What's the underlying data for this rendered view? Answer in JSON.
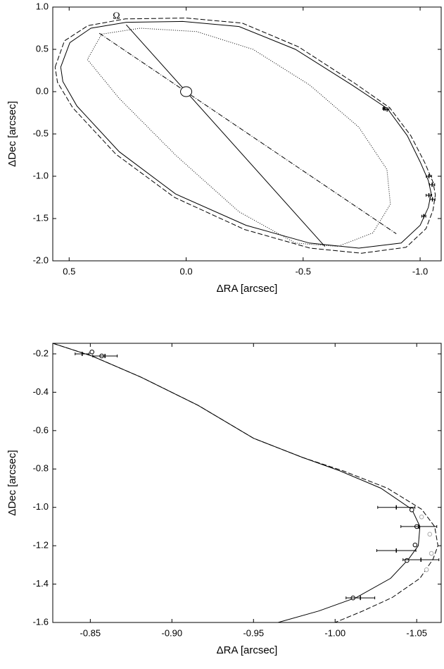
{
  "chart_data": [
    {
      "type": "line",
      "xlabel": "ΔRA [arcsec]",
      "ylabel": "ΔDec [arcsec]",
      "annotation": "Ω",
      "xlim": [
        0.57,
        -1.09
      ],
      "ylim": [
        -2.0,
        1.0
      ],
      "xticks": [
        0.5,
        {
          "value": 0,
          "label": "0.0"
        },
        -0.5,
        {
          "value": -1,
          "label": "-1.0"
        }
      ],
      "yticks": [
        {
          "value": 1,
          "label": "1.0"
        },
        0.5,
        {
          "value": 0,
          "label": "0.0"
        },
        -0.5,
        {
          "value": -1,
          "label": "-1.0"
        },
        -1.5,
        {
          "value": -2,
          "label": "-2.0"
        }
      ],
      "series": [
        {
          "style": "dashed",
          "color": "#000000",
          "x": [
            0.56,
            0.52,
            0.42,
            0.26,
            0.0,
            -0.24,
            -0.48,
            -0.72,
            -0.87,
            -0.96,
            -1.02,
            -1.055,
            -1.065,
            -1.055,
            -1.025,
            -0.94,
            -0.75,
            -0.53,
            -0.25,
            0.05,
            0.3,
            0.485,
            0.55,
            0.56
          ],
          "y": [
            0.29,
            0.6,
            0.78,
            0.86,
            0.87,
            0.81,
            0.53,
            0.1,
            -0.19,
            -0.52,
            -0.84,
            -1.07,
            -1.22,
            -1.4,
            -1.62,
            -1.84,
            -1.91,
            -1.85,
            -1.63,
            -1.25,
            -0.74,
            -0.19,
            0.11,
            0.29
          ]
        },
        {
          "style": "solid",
          "color": "#000000",
          "x": [
            0.536,
            0.497,
            0.407,
            0.256,
            0.015,
            -0.226,
            -0.467,
            -0.708,
            -0.86,
            -0.945,
            -1.0,
            -1.035,
            -1.047,
            -1.035,
            -1.0,
            -0.919,
            -0.738,
            -0.527,
            -0.256,
            0.045,
            0.286,
            0.467,
            0.527,
            0.536
          ],
          "y": [
            0.29,
            0.58,
            0.75,
            0.82,
            0.83,
            0.77,
            0.5,
            0.08,
            -0.2,
            -0.52,
            -0.83,
            -1.05,
            -1.2,
            -1.37,
            -1.58,
            -1.79,
            -1.85,
            -1.79,
            -1.58,
            -1.21,
            -0.71,
            -0.17,
            0.12,
            0.29
          ]
        },
        {
          "style": "dotted",
          "color": "#000000",
          "x": [
            0.361,
            0.196,
            -0.045,
            -0.286,
            -0.527,
            -0.738,
            -0.858,
            -0.873,
            -0.798,
            -0.648,
            -0.467,
            -0.226,
            0.045,
            0.286,
            0.422,
            0.361
          ],
          "y": [
            0.68,
            0.75,
            0.71,
            0.5,
            0.08,
            -0.42,
            -0.92,
            -1.33,
            -1.67,
            -1.83,
            -1.79,
            -1.42,
            -0.75,
            -0.08,
            0.38,
            0.68
          ]
        },
        {
          "style": "solid",
          "color": "#000000",
          "x": [
            0.256,
            -0.593
          ],
          "y": [
            0.79,
            -1.83
          ]
        },
        {
          "style": "dashdot",
          "color": "#000000",
          "x": [
            0.371,
            -0.898
          ],
          "y": [
            0.69,
            -1.68
          ]
        },
        {
          "marker": "ellipse",
          "color": "#000000",
          "x": [
            0
          ],
          "y": [
            0
          ]
        },
        {
          "marker": "bar",
          "color": "#000000",
          "x": [
            -0.845,
            -0.859,
            -1.0375,
            -1.0513,
            -1.0375,
            -1.0526,
            -1.0155
          ],
          "y": [
            -0.2,
            -0.211,
            -1.0,
            -1.1,
            -1.225,
            -1.273,
            -1.472
          ],
          "xerr": [
            0.0043,
            0.0075,
            0.0114,
            0.011,
            0.012,
            0.011,
            0.0088
          ]
        }
      ]
    },
    {
      "type": "line",
      "xlabel": "ΔRA [arcsec]",
      "ylabel": "ΔDec [arcsec]",
      "xlim": [
        -0.827,
        -1.065
      ],
      "ylim": [
        -1.6,
        -0.145
      ],
      "xticks": [
        -0.85,
        {
          "value": -0.9,
          "label": "-0.90"
        },
        -0.95,
        {
          "value": -1,
          "label": "-1.00"
        },
        -1.05
      ],
      "yticks": [
        -0.2,
        -0.4,
        -0.6,
        -0.8,
        {
          "value": -1,
          "label": "-1.0"
        },
        -1.2,
        -1.4,
        -1.6
      ],
      "series": [
        {
          "style": "dashed",
          "color": "#000000",
          "x": [
            -0.827,
            -0.851,
            -0.881,
            -0.916,
            -0.95,
            -0.98,
            -1.005,
            -1.032,
            -1.053,
            -1.061,
            -1.063,
            -1.06,
            -1.052,
            -1.035,
            -1.017,
            -1.0
          ],
          "y": [
            -0.145,
            -0.211,
            -0.321,
            -0.468,
            -0.64,
            -0.74,
            -0.81,
            -0.9,
            -1.01,
            -1.1,
            -1.2,
            -1.27,
            -1.37,
            -1.47,
            -1.54,
            -1.6
          ]
        },
        {
          "style": "solid",
          "color": "#000000",
          "x": [
            -0.827,
            -0.851,
            -0.881,
            -0.916,
            -0.95,
            -0.98,
            -1.003,
            -1.028,
            -1.047,
            -1.052,
            -1.051,
            -1.045,
            -1.034,
            -1.013,
            -0.99,
            -0.965
          ],
          "y": [
            -0.145,
            -0.211,
            -0.321,
            -0.468,
            -0.64,
            -0.74,
            -0.81,
            -0.9,
            -1.01,
            -1.1,
            -1.2,
            -1.27,
            -1.37,
            -1.47,
            -1.54,
            -1.6
          ]
        },
        {
          "marker": "circle",
          "color": "#000000",
          "x": [
            -0.851,
            -0.857,
            -1.047,
            -1.05,
            -1.049,
            -1.044,
            -1.011
          ],
          "y": [
            -0.19,
            -0.211,
            -1.013,
            -1.1,
            -1.196,
            -1.277,
            -1.472
          ]
        },
        {
          "marker": "circle",
          "color": "#aaaaaa",
          "x": [
            -1.053,
            -1.058,
            -1.059,
            -1.056
          ],
          "y": [
            -1.05,
            -1.14,
            -1.24,
            -1.325
          ]
        },
        {
          "marker": "bar",
          "color": "#000000",
          "x": [
            -0.845,
            -0.859,
            -1.0375,
            -1.0513,
            -1.0375,
            -1.0526,
            -1.0155
          ],
          "y": [
            -0.2,
            -0.211,
            -1.0,
            -1.1,
            -1.225,
            -1.273,
            -1.472
          ],
          "xerr": [
            0.0043,
            0.0075,
            0.0114,
            0.011,
            0.012,
            0.011,
            0.0088
          ]
        }
      ]
    }
  ]
}
